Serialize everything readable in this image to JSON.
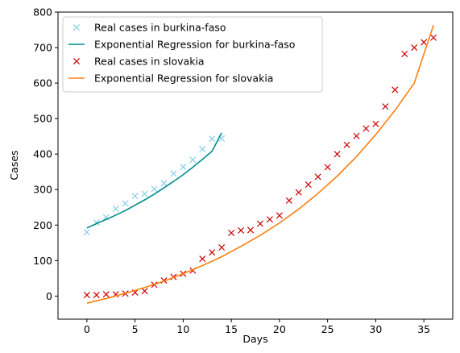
{
  "chart_data": {
    "type": "scatter",
    "xlabel": "Days",
    "ylabel": "Cases",
    "xlim": [
      -3,
      38
    ],
    "ylim": [
      -65,
      800
    ],
    "xticks": [
      0,
      5,
      10,
      15,
      20,
      25,
      30,
      35
    ],
    "yticks": [
      0,
      100,
      200,
      300,
      400,
      500,
      600,
      700,
      800
    ],
    "legend_position": "top-left",
    "series": [
      {
        "name": "Real cases in burkina-faso",
        "kind": "points",
        "marker": "x",
        "color": "#87ceeb",
        "x": [
          0,
          1,
          2,
          3,
          4,
          5,
          6,
          7,
          8,
          9,
          10,
          11,
          12,
          13,
          14
        ],
        "y": [
          180,
          207,
          222,
          246,
          261,
          282,
          288,
          302,
          318,
          345,
          364,
          384,
          414,
          443,
          444
        ]
      },
      {
        "name": "Exponential Regression for burkina-faso",
        "kind": "line",
        "color": "#008b8b",
        "x": [
          0,
          1,
          2,
          3,
          4,
          5,
          6,
          7,
          8,
          9,
          10,
          11,
          12,
          13,
          14
        ],
        "y": [
          192,
          204,
          216,
          228,
          241,
          256,
          271,
          287,
          305,
          323,
          342,
          363,
          385,
          408,
          460
        ]
      },
      {
        "name": "Real cases in slovakia",
        "kind": "points",
        "marker": "x",
        "color": "#cc0000",
        "x": [
          0,
          1,
          2,
          3,
          4,
          5,
          6,
          7,
          8,
          9,
          10,
          11,
          12,
          13,
          14,
          15,
          16,
          17,
          18,
          19,
          20,
          21,
          22,
          23,
          24,
          25,
          26,
          27,
          28,
          29,
          30,
          31,
          32,
          33,
          34,
          35,
          36
        ],
        "y": [
          3,
          3,
          5,
          5,
          7,
          10,
          14,
          32,
          44,
          54,
          63,
          72,
          105,
          123,
          137,
          178,
          185,
          186,
          204,
          216,
          227,
          269,
          292,
          314,
          336,
          363,
          400,
          426,
          451,
          472,
          485,
          534,
          581,
          682,
          700,
          715,
          728
        ]
      },
      {
        "name": "Exponential Regression for slovakia",
        "kind": "line",
        "color": "#ff7f0e",
        "x": [
          0,
          2,
          4,
          6,
          8,
          10,
          12,
          14,
          16,
          18,
          20,
          22,
          24,
          26,
          28,
          30,
          32,
          34,
          36
        ],
        "y": [
          -20,
          -7,
          8,
          24,
          42,
          63,
          86,
          111,
          140,
          171,
          206,
          245,
          289,
          338,
          393,
          455,
          523,
          600,
          763
        ]
      }
    ]
  }
}
